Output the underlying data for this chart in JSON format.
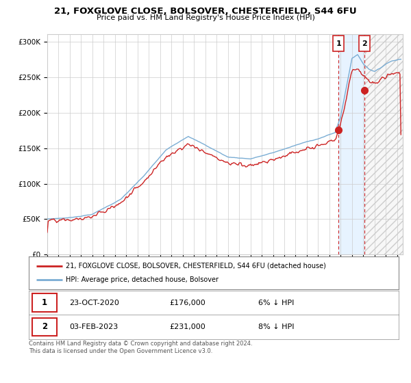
{
  "title": "21, FOXGLOVE CLOSE, BOLSOVER, CHESTERFIELD, S44 6FU",
  "subtitle": "Price paid vs. HM Land Registry's House Price Index (HPI)",
  "ylabel_ticks": [
    "£0",
    "£50K",
    "£100K",
    "£150K",
    "£200K",
    "£250K",
    "£300K"
  ],
  "ytick_values": [
    0,
    50000,
    100000,
    150000,
    200000,
    250000,
    300000
  ],
  "ylim": [
    0,
    310000
  ],
  "xlim_start": 1995.0,
  "xlim_end": 2026.5,
  "hpi_color": "#7aadd4",
  "price_color": "#cc2222",
  "marker1_date": 2020.81,
  "marker1_price": 176000,
  "marker2_date": 2023.09,
  "marker2_price": 231000,
  "hpi_at_marker1": 187000,
  "hpi_at_marker2": 251000,
  "legend_line1": "21, FOXGLOVE CLOSE, BOLSOVER, CHESTERFIELD, S44 6FU (detached house)",
  "legend_line2": "HPI: Average price, detached house, Bolsover",
  "table_row1": [
    "1",
    "23-OCT-2020",
    "£176,000",
    "6% ↓ HPI"
  ],
  "table_row2": [
    "2",
    "03-FEB-2023",
    "£231,000",
    "8% ↓ HPI"
  ],
  "footer": "Contains HM Land Registry data © Crown copyright and database right 2024.\nThis data is licensed under the Open Government Licence v3.0.",
  "bg": "#ffffff",
  "grid_color": "#cccccc",
  "shade_color": "#ddeeff",
  "hatch_color": "#cccccc"
}
